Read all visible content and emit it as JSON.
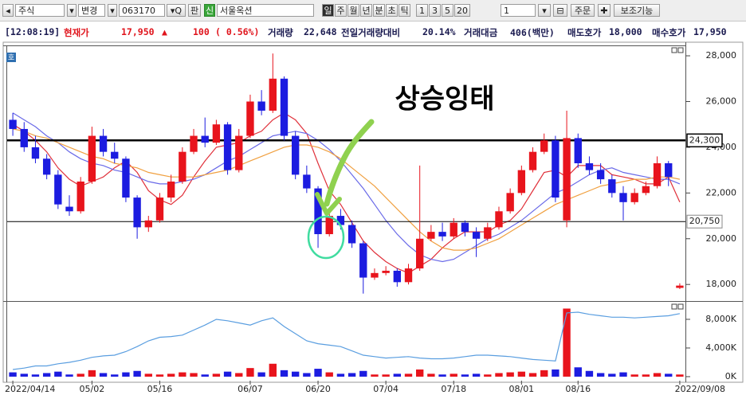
{
  "toolbar": {
    "market": "주식",
    "change": "변경",
    "code": "063170",
    "board": "판",
    "badge": "신",
    "name": "서울옥션",
    "periods": [
      "일",
      "주",
      "월",
      "년",
      "분",
      "초",
      "틱"
    ],
    "intervals": [
      "1",
      "3",
      "5",
      "20"
    ],
    "count": "1",
    "order": "주문",
    "indicators": "보조기능"
  },
  "info_bar": {
    "time": "[12:08:19]",
    "price_label": "현재가",
    "price": "17,950",
    "direction": "▲",
    "change": "100",
    "change_pct": "( 0.56%)",
    "volume_label": "거래량",
    "volume": "22,648",
    "prev_volume_label": "전일거래량대비",
    "prev_volume_ratio": "20.14%",
    "amount_label": "거래대금",
    "amount": "406(백만)",
    "ask_label": "매도호가",
    "ask": "18,000",
    "bid_label": "매수호가",
    "bid": "17,950"
  },
  "panel_badge": "호",
  "chart_data": [
    {
      "type": "candlestick",
      "annotation": "상승잉태",
      "up_color": "#e8141c",
      "down_color": "#1c1ce0",
      "open": [
        25200,
        24800,
        24000,
        23500,
        22800,
        21400,
        21200,
        22500,
        24500,
        23800,
        23500,
        21800,
        20500,
        20800,
        21800,
        22500,
        23800,
        24500,
        24200,
        25000,
        23000,
        24500,
        26000,
        25600,
        27000,
        24500,
        22800,
        22200,
        20200,
        21000,
        20600,
        19800,
        18300,
        18500,
        18600,
        18100,
        18700,
        20000,
        20300,
        20100,
        20700,
        20300,
        20000,
        20500,
        21200,
        22000,
        23000,
        23800,
        24300,
        20800,
        24400,
        23300,
        23000,
        22600,
        22000,
        21600,
        22000,
        22300,
        23300,
        17850
      ],
      "high": [
        25500,
        25100,
        24500,
        23700,
        23000,
        21900,
        22700,
        24900,
        24800,
        24200,
        23600,
        21900,
        21000,
        22000,
        22800,
        24000,
        24800,
        25300,
        25200,
        25100,
        24800,
        26300,
        26500,
        28100,
        27100,
        24700,
        23200,
        22300,
        21200,
        21300,
        20800,
        19900,
        18700,
        18800,
        18700,
        18900,
        23200,
        20600,
        20700,
        20900,
        20800,
        20500,
        20700,
        21400,
        22200,
        23200,
        24000,
        24600,
        24500,
        25600,
        24600,
        23600,
        23300,
        22800,
        22300,
        22200,
        22500,
        23600,
        23400,
        18050
      ],
      "low": [
        24500,
        23800,
        23300,
        22600,
        21300,
        21000,
        21100,
        22400,
        23600,
        23300,
        21600,
        20000,
        20300,
        20700,
        21600,
        22400,
        23700,
        24000,
        24100,
        22800,
        22900,
        24400,
        25400,
        25500,
        24300,
        22600,
        22000,
        19600,
        20100,
        20400,
        19600,
        17600,
        18200,
        18400,
        17900,
        18000,
        18600,
        19900,
        19900,
        20000,
        20100,
        19200,
        19900,
        20400,
        21100,
        21900,
        22900,
        23700,
        21600,
        20500,
        23100,
        22800,
        22400,
        21800,
        20800,
        21500,
        21900,
        22200,
        22300,
        17800
      ],
      "close": [
        24800,
        24000,
        23500,
        22800,
        21500,
        21200,
        22500,
        24500,
        23800,
        23500,
        21800,
        20500,
        20800,
        21800,
        22500,
        23800,
        24500,
        24200,
        25000,
        23000,
        24500,
        26000,
        25600,
        27000,
        24500,
        22800,
        22200,
        20200,
        21000,
        20600,
        19800,
        18300,
        18500,
        18600,
        18100,
        18700,
        20000,
        20300,
        20100,
        20700,
        20300,
        20000,
        20500,
        21200,
        22000,
        23000,
        23800,
        24300,
        21800,
        24400,
        23300,
        23000,
        22600,
        22000,
        21600,
        22000,
        22300,
        23300,
        22700,
        17950
      ],
      "lines": [
        {
          "color": "#e0303a",
          "values": [
            25000,
            24700,
            24300,
            23800,
            23100,
            22600,
            22300,
            22500,
            22700,
            23100,
            23400,
            22900,
            22100,
            21700,
            21500,
            21900,
            22700,
            23400,
            24000,
            24100,
            24200,
            24500,
            24700,
            25200,
            25500,
            25200,
            24600,
            23300,
            22100,
            21500,
            20700,
            19900,
            19400,
            19000,
            18700,
            18500,
            18800,
            19100,
            19600,
            20000,
            20300,
            20300,
            20300,
            20600,
            20800,
            21300,
            22100,
            22900,
            23000,
            22700,
            23200,
            23200,
            23200,
            22800,
            22700,
            22600,
            22400,
            22400,
            22700,
            21600
          ]
        },
        {
          "color": "#6a6ae8",
          "values": [
            25500,
            25200,
            24900,
            24500,
            24200,
            23800,
            23500,
            23300,
            23200,
            23000,
            22900,
            22700,
            22500,
            22400,
            22400,
            22500,
            22600,
            22800,
            23100,
            23400,
            23600,
            23900,
            24200,
            24500,
            24600,
            24700,
            24600,
            24300,
            23900,
            23400,
            22800,
            22200,
            21500,
            20800,
            20200,
            19700,
            19300,
            19100,
            19000,
            19100,
            19400,
            19700,
            20000,
            20200,
            20500,
            20800,
            21200,
            21600,
            22000,
            22200,
            22500,
            22800,
            23000,
            23100,
            22900,
            22800,
            22700,
            22600,
            22600,
            22400
          ]
        },
        {
          "color": "#f0a040",
          "values": [
            24800,
            24700,
            24500,
            24400,
            24200,
            24000,
            23800,
            23600,
            23500,
            23300,
            23200,
            23100,
            22900,
            22800,
            22700,
            22700,
            22700,
            22800,
            22900,
            23000,
            23200,
            23400,
            23600,
            23800,
            24000,
            24100,
            24100,
            24000,
            23800,
            23500,
            23100,
            22700,
            22300,
            21800,
            21300,
            20800,
            20300,
            19900,
            19600,
            19500,
            19500,
            19600,
            19800,
            20000,
            20300,
            20600,
            20900,
            21200,
            21500,
            21700,
            21900,
            22100,
            22300,
            22400,
            22500,
            22600,
            22600,
            22700,
            22700,
            22600
          ]
        }
      ],
      "hlines": [
        {
          "value": 24300,
          "label": "24,300",
          "bold": true
        },
        {
          "value": 20750,
          "label": "20,750",
          "bold": false
        }
      ],
      "ylim": [
        17310,
        28420
      ],
      "yticks": [
        {
          "value": 28000,
          "label": "28,000"
        },
        {
          "value": 26000,
          "label": "26,000"
        },
        {
          "value": 24000,
          "label": "24,000"
        },
        {
          "value": 22000,
          "label": "22,000"
        },
        {
          "value": 20000,
          "label": "20,000"
        },
        {
          "value": 18000,
          "label": "18,000"
        }
      ]
    },
    {
      "type": "bar",
      "categories": [
        "2022/04/14",
        null,
        null,
        null,
        null,
        null,
        null,
        "05/02",
        null,
        null,
        null,
        null,
        null,
        "05/16",
        null,
        null,
        null,
        null,
        null,
        null,
        null,
        "06/07",
        null,
        null,
        null,
        null,
        null,
        "06/20",
        null,
        null,
        null,
        null,
        null,
        "07/04",
        null,
        null,
        null,
        null,
        null,
        "07/18",
        null,
        null,
        null,
        null,
        null,
        "08/01",
        null,
        null,
        null,
        null,
        "08/16",
        null,
        null,
        null,
        null,
        null,
        null,
        null,
        null,
        "2022/09/08"
      ],
      "values": [
        600,
        400,
        300,
        500,
        700,
        300,
        400,
        900,
        500,
        300,
        600,
        800,
        400,
        300,
        400,
        600,
        500,
        300,
        400,
        700,
        500,
        1200,
        600,
        1800,
        900,
        700,
        500,
        1100,
        600,
        400,
        500,
        800,
        300,
        300,
        400,
        400,
        1000,
        400,
        300,
        400,
        300,
        400,
        300,
        500,
        600,
        700,
        500,
        900,
        1000,
        9500,
        1300,
        800,
        500,
        400,
        600,
        300,
        300,
        500,
        400,
        300
      ],
      "line": {
        "color": "#5a9ee0",
        "values": [
          1000,
          1200,
          1500,
          1500,
          1800,
          2000,
          2300,
          2700,
          2900,
          3000,
          3500,
          4200,
          5000,
          5500,
          5600,
          5800,
          6500,
          7200,
          8000,
          7800,
          7500,
          7200,
          7800,
          8200,
          7000,
          6000,
          5000,
          4600,
          4400,
          4200,
          3600,
          3000,
          2800,
          2600,
          2700,
          2800,
          2600,
          2500,
          2500,
          2600,
          2800,
          3000,
          3000,
          2900,
          2800,
          2600,
          2400,
          2300,
          2200,
          8900,
          9000,
          8700,
          8500,
          8300,
          8300,
          8200,
          8300,
          8400,
          8500,
          8800
        ]
      },
      "ylim": [
        -560,
        10330
      ],
      "yticks": [
        {
          "value": 8000,
          "label": "8,000K"
        },
        {
          "value": 4000,
          "label": "4,000K"
        },
        {
          "value": 0,
          "label": "0K"
        }
      ]
    }
  ]
}
